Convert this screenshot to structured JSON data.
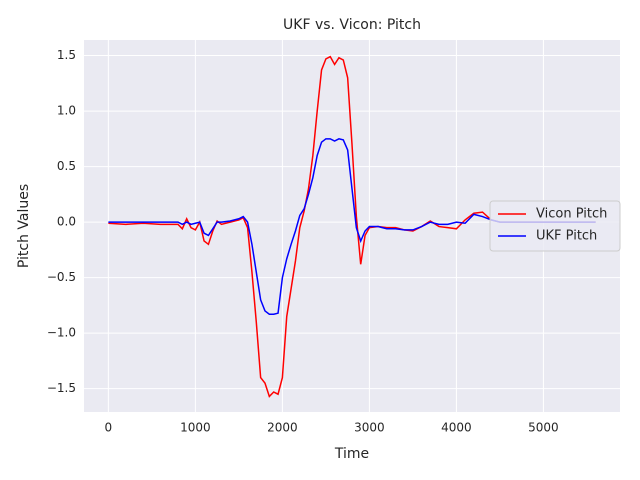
{
  "chart_data": {
    "type": "line",
    "title": "UKF vs. Vicon: Pitch",
    "x_label": "Time",
    "y_label": "Pitch Values",
    "x": [
      0,
      200,
      400,
      600,
      800,
      850,
      900,
      950,
      1000,
      1050,
      1100,
      1150,
      1200,
      1250,
      1300,
      1400,
      1500,
      1550,
      1600,
      1650,
      1700,
      1750,
      1800,
      1850,
      1900,
      1950,
      2000,
      2050,
      2100,
      2150,
      2200,
      2250,
      2300,
      2350,
      2400,
      2450,
      2500,
      2550,
      2600,
      2650,
      2700,
      2750,
      2800,
      2850,
      2900,
      2950,
      3000,
      3100,
      3200,
      3300,
      3400,
      3500,
      3600,
      3700,
      3800,
      3900,
      4000,
      4100,
      4200,
      4300,
      4400,
      4500,
      4600,
      4800,
      5000,
      5200,
      5400,
      5600
    ],
    "series": [
      {
        "name": "Vicon Pitch",
        "color": "#ff0000",
        "values": [
          -0.01,
          -0.02,
          -0.01,
          -0.02,
          -0.02,
          -0.06,
          0.03,
          -0.05,
          -0.07,
          0.0,
          -0.17,
          -0.2,
          -0.08,
          0.01,
          -0.02,
          0.0,
          0.02,
          0.04,
          -0.05,
          -0.45,
          -0.9,
          -1.4,
          -1.45,
          -1.57,
          -1.53,
          -1.55,
          -1.4,
          -0.85,
          -0.6,
          -0.35,
          -0.05,
          0.1,
          0.3,
          0.6,
          1.0,
          1.37,
          1.47,
          1.49,
          1.42,
          1.48,
          1.46,
          1.3,
          0.7,
          0.05,
          -0.38,
          -0.12,
          -0.05,
          -0.04,
          -0.05,
          -0.05,
          -0.07,
          -0.08,
          -0.04,
          0.01,
          -0.04,
          -0.05,
          -0.06,
          0.02,
          0.08,
          0.09,
          0.02,
          0.0,
          0.0,
          0.0,
          0.0,
          0.0,
          0.0,
          0.0
        ]
      },
      {
        "name": "UKF Pitch",
        "color": "#0000ff",
        "values": [
          0.0,
          0.0,
          0.0,
          0.0,
          0.0,
          -0.02,
          0.0,
          -0.02,
          -0.01,
          0.0,
          -0.1,
          -0.12,
          -0.06,
          0.0,
          0.0,
          0.01,
          0.03,
          0.05,
          0.0,
          -0.2,
          -0.45,
          -0.7,
          -0.8,
          -0.83,
          -0.83,
          -0.82,
          -0.5,
          -0.33,
          -0.2,
          -0.08,
          0.06,
          0.12,
          0.25,
          0.4,
          0.6,
          0.72,
          0.75,
          0.75,
          0.73,
          0.75,
          0.74,
          0.65,
          0.3,
          -0.05,
          -0.17,
          -0.08,
          -0.04,
          -0.04,
          -0.06,
          -0.06,
          -0.07,
          -0.07,
          -0.04,
          0.0,
          -0.02,
          -0.02,
          0.0,
          -0.01,
          0.07,
          0.05,
          0.02,
          0.0,
          0.0,
          0.0,
          0.0,
          0.0,
          0.0,
          0.0
        ]
      }
    ],
    "xlim": [
      -280,
      5880
    ],
    "ylim": [
      -1.71,
      1.64
    ],
    "xticks": [
      0,
      1000,
      2000,
      3000,
      4000,
      5000
    ],
    "yticks": [
      {
        "value": -1.5,
        "label": "−1.5"
      },
      {
        "value": -1.0,
        "label": "−1.0"
      },
      {
        "value": -0.5,
        "label": "−0.5"
      },
      {
        "value": 0,
        "label": "0.0"
      },
      0.5,
      {
        "value": 1.0,
        "label": "1.0"
      },
      1.5
    ],
    "grid": true,
    "legend": "center right"
  }
}
